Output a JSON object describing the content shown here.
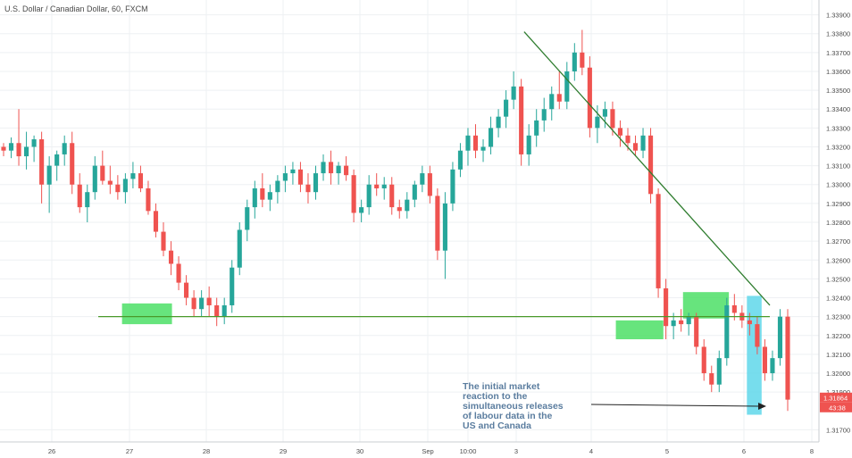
{
  "chart_data": {
    "type": "candlestick",
    "title": "U.S. Dollar / Canadian Dollar, 60, FXCM",
    "y_axis": {
      "min": 1.3165,
      "max": 1.3395,
      "ticks": [
        "1.33900",
        "1.33800",
        "1.33700",
        "1.33600",
        "1.33500",
        "1.33400",
        "1.33300",
        "1.33200",
        "1.33100",
        "1.33000",
        "1.32900",
        "1.32800",
        "1.32700",
        "1.32600",
        "1.32500",
        "1.32400",
        "1.32300",
        "1.32200",
        "1.32100",
        "1.32000",
        "1.31900",
        "1.31700"
      ]
    },
    "x_axis": {
      "ticks": [
        "26",
        "27",
        "28",
        "29",
        "30",
        "Sep",
        "10:00",
        "3",
        "4",
        "5",
        "6",
        "8"
      ]
    },
    "grid": true,
    "price_label": "1.31864",
    "countdown_label": "43:38",
    "candles": [
      [
        1.332,
        1.3322,
        1.3315,
        1.3318
      ],
      [
        1.3318,
        1.3325,
        1.3314,
        1.3322
      ],
      [
        1.3322,
        1.334,
        1.331,
        1.3315
      ],
      [
        1.3315,
        1.3328,
        1.3308,
        1.332
      ],
      [
        1.332,
        1.3326,
        1.3312,
        1.3324
      ],
      [
        1.3324,
        1.3328,
        1.329,
        1.33
      ],
      [
        1.33,
        1.3315,
        1.3285,
        1.331
      ],
      [
        1.331,
        1.3318,
        1.3302,
        1.3316
      ],
      [
        1.3316,
        1.3326,
        1.331,
        1.3322
      ],
      [
        1.3322,
        1.3328,
        1.3295,
        1.33
      ],
      [
        1.33,
        1.3306,
        1.3285,
        1.3288
      ],
      [
        1.3288,
        1.33,
        1.328,
        1.3296
      ],
      [
        1.3296,
        1.3315,
        1.3292,
        1.331
      ],
      [
        1.331,
        1.3318,
        1.33,
        1.3302
      ],
      [
        1.3302,
        1.331,
        1.3295,
        1.33
      ],
      [
        1.33,
        1.3305,
        1.3292,
        1.3296
      ],
      [
        1.3296,
        1.3306,
        1.329,
        1.3303
      ],
      [
        1.3303,
        1.3312,
        1.3298,
        1.3306
      ],
      [
        1.3306,
        1.331,
        1.3296,
        1.3298
      ],
      [
        1.3298,
        1.3302,
        1.3284,
        1.3286
      ],
      [
        1.3286,
        1.329,
        1.3272,
        1.3275
      ],
      [
        1.3275,
        1.328,
        1.3262,
        1.3265
      ],
      [
        1.3265,
        1.327,
        1.3252,
        1.3258
      ],
      [
        1.3258,
        1.3262,
        1.3244,
        1.3248
      ],
      [
        1.3248,
        1.3252,
        1.3236,
        1.324
      ],
      [
        1.324,
        1.3244,
        1.323,
        1.3234
      ],
      [
        1.3234,
        1.3244,
        1.323,
        1.324
      ],
      [
        1.324,
        1.3246,
        1.323,
        1.3236
      ],
      [
        1.3236,
        1.324,
        1.3225,
        1.323
      ],
      [
        1.323,
        1.324,
        1.3226,
        1.3236
      ],
      [
        1.3236,
        1.326,
        1.3232,
        1.3256
      ],
      [
        1.3256,
        1.328,
        1.3252,
        1.3276
      ],
      [
        1.3276,
        1.3292,
        1.327,
        1.3288
      ],
      [
        1.3288,
        1.3302,
        1.3282,
        1.3298
      ],
      [
        1.3298,
        1.3306,
        1.3288,
        1.3292
      ],
      [
        1.3292,
        1.33,
        1.3286,
        1.3296
      ],
      [
        1.3296,
        1.3305,
        1.329,
        1.3302
      ],
      [
        1.3302,
        1.331,
        1.3296,
        1.3306
      ],
      [
        1.3306,
        1.3312,
        1.33,
        1.3308
      ],
      [
        1.3308,
        1.3312,
        1.3296,
        1.33
      ],
      [
        1.33,
        1.3306,
        1.329,
        1.3296
      ],
      [
        1.3296,
        1.331,
        1.3292,
        1.3306
      ],
      [
        1.3306,
        1.3316,
        1.3302,
        1.3312
      ],
      [
        1.3312,
        1.3318,
        1.33,
        1.3306
      ],
      [
        1.3306,
        1.3312,
        1.33,
        1.331
      ],
      [
        1.331,
        1.3315,
        1.3302,
        1.3305
      ],
      [
        1.3305,
        1.3308,
        1.328,
        1.3285
      ],
      [
        1.3285,
        1.3292,
        1.328,
        1.3288
      ],
      [
        1.3288,
        1.3305,
        1.3284,
        1.33
      ],
      [
        1.33,
        1.3306,
        1.3294,
        1.3298
      ],
      [
        1.3298,
        1.3304,
        1.3292,
        1.33
      ],
      [
        1.33,
        1.3304,
        1.3284,
        1.3288
      ],
      [
        1.3288,
        1.3292,
        1.3282,
        1.3286
      ],
      [
        1.3286,
        1.3296,
        1.3282,
        1.3292
      ],
      [
        1.3292,
        1.3302,
        1.3288,
        1.33
      ],
      [
        1.33,
        1.331,
        1.3296,
        1.3306
      ],
      [
        1.3306,
        1.331,
        1.329,
        1.3294
      ],
      [
        1.3294,
        1.3298,
        1.326,
        1.3265
      ],
      [
        1.3265,
        1.3296,
        1.325,
        1.329
      ],
      [
        1.329,
        1.3312,
        1.3286,
        1.3308
      ],
      [
        1.3308,
        1.3322,
        1.3304,
        1.3318
      ],
      [
        1.3318,
        1.333,
        1.331,
        1.3326
      ],
      [
        1.3326,
        1.3332,
        1.3314,
        1.3318
      ],
      [
        1.3318,
        1.3324,
        1.3312,
        1.332
      ],
      [
        1.332,
        1.3336,
        1.3316,
        1.333
      ],
      [
        1.333,
        1.334,
        1.3325,
        1.3336
      ],
      [
        1.3336,
        1.335,
        1.333,
        1.3345
      ],
      [
        1.3345,
        1.336,
        1.334,
        1.3352
      ],
      [
        1.3352,
        1.3356,
        1.331,
        1.3316
      ],
      [
        1.3316,
        1.3332,
        1.331,
        1.3326
      ],
      [
        1.3326,
        1.334,
        1.332,
        1.3334
      ],
      [
        1.3334,
        1.3346,
        1.3328,
        1.334
      ],
      [
        1.334,
        1.3352,
        1.3334,
        1.3348
      ],
      [
        1.3348,
        1.336,
        1.334,
        1.3344
      ],
      [
        1.3344,
        1.3365,
        1.334,
        1.336
      ],
      [
        1.336,
        1.3375,
        1.3355,
        1.337
      ],
      [
        1.337,
        1.3382,
        1.3358,
        1.3362
      ],
      [
        1.3362,
        1.3368,
        1.3325,
        1.333
      ],
      [
        1.333,
        1.3342,
        1.3322,
        1.3336
      ],
      [
        1.3336,
        1.3344,
        1.333,
        1.334
      ],
      [
        1.334,
        1.3344,
        1.3326,
        1.333
      ],
      [
        1.333,
        1.3334,
        1.332,
        1.3326
      ],
      [
        1.3326,
        1.333,
        1.3318,
        1.3322
      ],
      [
        1.3322,
        1.3326,
        1.3315,
        1.3318
      ],
      [
        1.3318,
        1.333,
        1.3314,
        1.3326
      ],
      [
        1.3326,
        1.333,
        1.329,
        1.3295
      ],
      [
        1.3295,
        1.3298,
        1.324,
        1.3245
      ],
      [
        1.3245,
        1.325,
        1.3218,
        1.3225
      ],
      [
        1.3225,
        1.3232,
        1.3218,
        1.3228
      ],
      [
        1.3228,
        1.3234,
        1.3222,
        1.3226
      ],
      [
        1.3226,
        1.3232,
        1.322,
        1.323
      ],
      [
        1.323,
        1.3232,
        1.321,
        1.3214
      ],
      [
        1.3214,
        1.3218,
        1.3196,
        1.32
      ],
      [
        1.32,
        1.3204,
        1.319,
        1.3194
      ],
      [
        1.3194,
        1.3212,
        1.319,
        1.3208
      ],
      [
        1.3208,
        1.324,
        1.3204,
        1.3236
      ],
      [
        1.3236,
        1.3242,
        1.3228,
        1.3232
      ],
      [
        1.3232,
        1.3236,
        1.3224,
        1.3228
      ],
      [
        1.3228,
        1.3232,
        1.322,
        1.3226
      ],
      [
        1.3226,
        1.323,
        1.321,
        1.3214
      ],
      [
        1.3214,
        1.3218,
        1.3196,
        1.32
      ],
      [
        1.32,
        1.3212,
        1.3196,
        1.3208
      ],
      [
        1.3208,
        1.3234,
        1.3204,
        1.323
      ],
      [
        1.323,
        1.3234,
        1.318,
        1.3186
      ]
    ],
    "lines": [
      {
        "name": "support",
        "color": "#4a9a2a",
        "x0": 0.12,
        "y0": 1.323,
        "x1": 0.94,
        "y1": 1.323
      },
      {
        "name": "trendline",
        "color": "#2f7d2f",
        "x0": 0.64,
        "y0": 1.3381,
        "x1": 0.94,
        "y1": 1.3236
      }
    ],
    "zones": [
      {
        "name": "support-zone-1",
        "color": "#4cdf66",
        "x0": 0.149,
        "x1": 0.21,
        "y0": 1.3226,
        "y1": 1.3237
      },
      {
        "name": "support-zone-2",
        "color": "#4cdf66",
        "x0": 0.752,
        "x1": 0.81,
        "y0": 1.3218,
        "y1": 1.3228
      },
      {
        "name": "resistance-zone",
        "color": "#4cdf66",
        "x0": 0.834,
        "x1": 0.89,
        "y0": 1.3229,
        "y1": 1.3243
      },
      {
        "name": "reaction-highlight",
        "color": "#5fd7ea",
        "x0": 0.912,
        "x1": 0.93,
        "y0": 1.3178,
        "y1": 1.3241
      }
    ],
    "annotation": {
      "lines": [
        "The initial market",
        "reaction to the",
        "simultaneous releases",
        "of labour data in the",
        "US and Canada"
      ],
      "color": "#5b7d9f"
    }
  }
}
